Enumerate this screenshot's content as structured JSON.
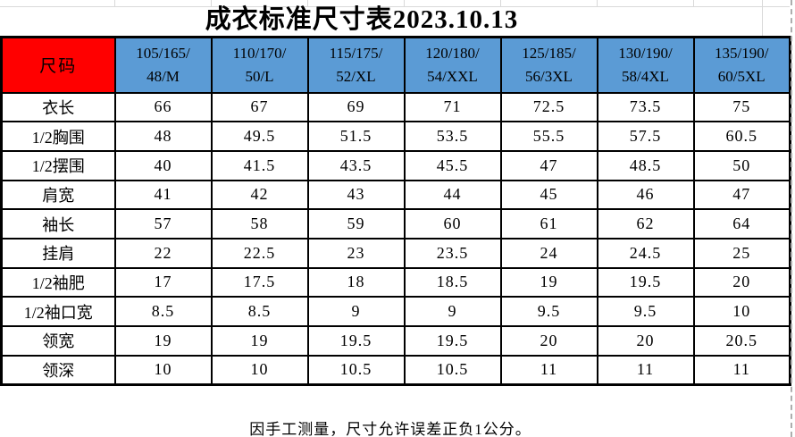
{
  "title": "成衣标准尺寸表2023.10.13",
  "table": {
    "corner_label": "尺码",
    "size_headers": [
      [
        "105/165/",
        "48/M"
      ],
      [
        "110/170/",
        "50/L"
      ],
      [
        "115/175/",
        "52/XL"
      ],
      [
        "120/180/",
        "54/XXL"
      ],
      [
        "125/185/",
        "56/3XL"
      ],
      [
        "130/190/",
        "58/4XL"
      ],
      [
        "135/190/",
        "60/5XL"
      ]
    ],
    "rows": [
      {
        "label": "衣长",
        "values": [
          "66",
          "67",
          "69",
          "71",
          "72.5",
          "73.5",
          "75"
        ]
      },
      {
        "label": "1/2胸围",
        "values": [
          "48",
          "49.5",
          "51.5",
          "53.5",
          "55.5",
          "57.5",
          "60.5"
        ]
      },
      {
        "label": "1/2摆围",
        "values": [
          "40",
          "41.5",
          "43.5",
          "45.5",
          "47",
          "48.5",
          "50"
        ]
      },
      {
        "label": "肩宽",
        "values": [
          "41",
          "42",
          "43",
          "44",
          "45",
          "46",
          "47"
        ]
      },
      {
        "label": "袖长",
        "values": [
          "57",
          "58",
          "59",
          "60",
          "61",
          "62",
          "64"
        ]
      },
      {
        "label": "挂肩",
        "values": [
          "22",
          "22.5",
          "23",
          "23.5",
          "24",
          "24.5",
          "25"
        ]
      },
      {
        "label": "1/2袖肥",
        "values": [
          "17",
          "17.5",
          "18",
          "18.5",
          "19",
          "19.5",
          "20"
        ]
      },
      {
        "label": "1/2袖口宽",
        "values": [
          "8.5",
          "8.5",
          "9",
          "9",
          "9.5",
          "9.5",
          "10"
        ]
      },
      {
        "label": "领宽",
        "values": [
          "19",
          "19",
          "19.5",
          "19.5",
          "20",
          "20",
          "20.5"
        ]
      },
      {
        "label": "领深",
        "values": [
          "10",
          "10",
          "10.5",
          "10.5",
          "11",
          "11",
          "11"
        ]
      }
    ]
  },
  "footer_note": "因手工测量，尺寸允许误差正负1公分。",
  "colors": {
    "corner_red": "#FF0000",
    "header_blue": "#5B9BD5",
    "border_black": "#000000",
    "gridline_gray": "#D9D9D9"
  }
}
